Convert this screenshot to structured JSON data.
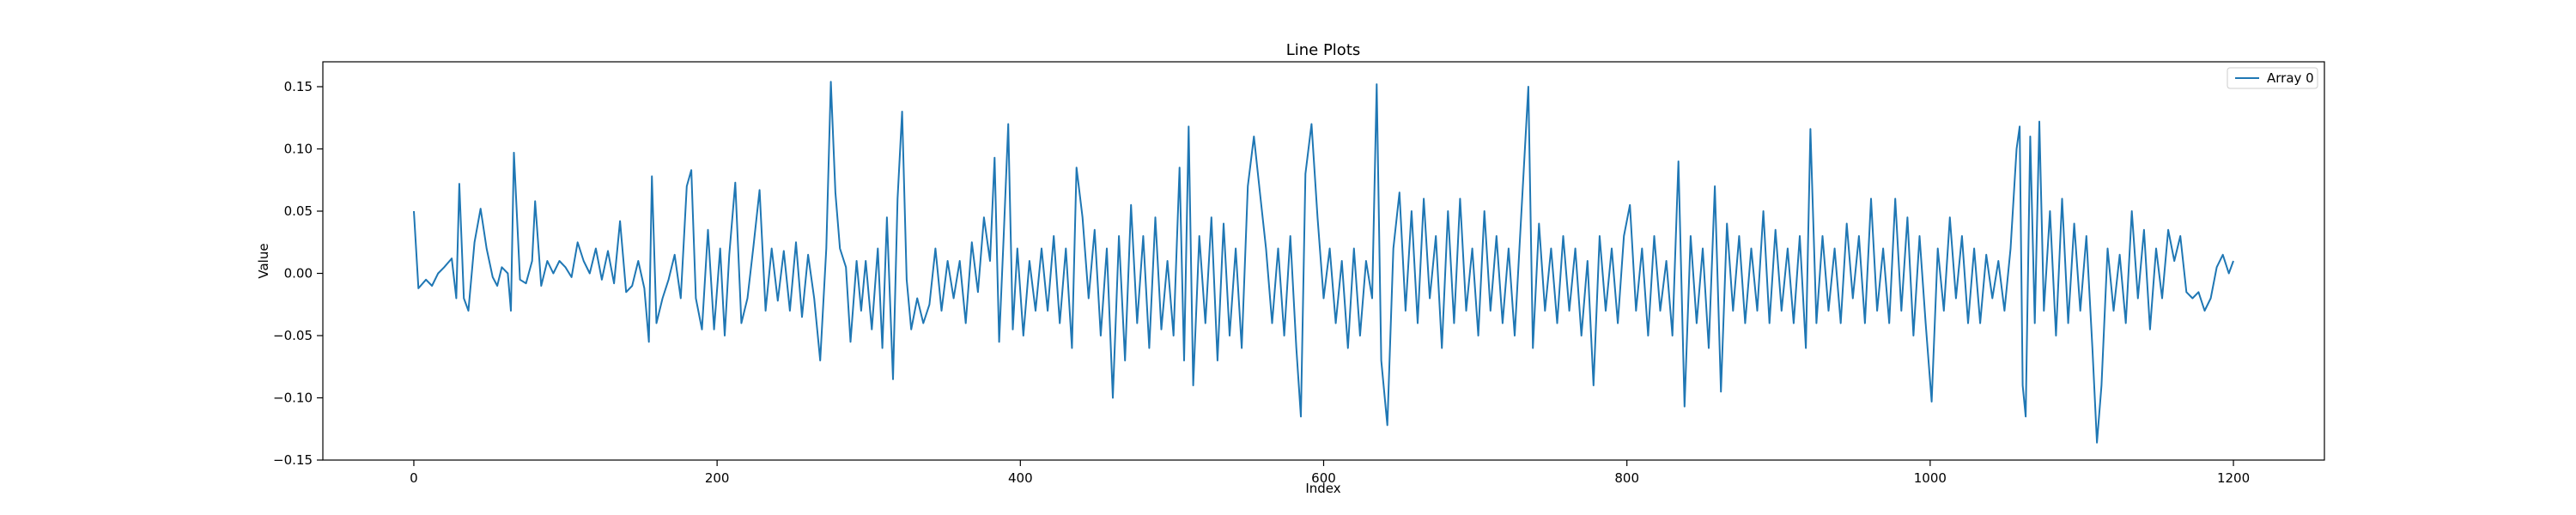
{
  "chart_data": {
    "type": "line",
    "title": "Line Plots",
    "xlabel": "Index",
    "ylabel": "Value",
    "xlim": [
      -60,
      1260
    ],
    "ylim": [
      -0.15,
      0.17
    ],
    "xticks": [
      0,
      200,
      400,
      600,
      800,
      1000,
      1200
    ],
    "xtick_labels": [
      "0",
      "200",
      "400",
      "600",
      "800",
      "1000",
      "1200"
    ],
    "yticks": [
      -0.15,
      -0.1,
      -0.05,
      0.0,
      0.05,
      0.1,
      0.15
    ],
    "ytick_labels": [
      "−0.15",
      "−0.10",
      "−0.05",
      "0.00",
      "0.05",
      "0.10",
      "0.15"
    ],
    "grid": false,
    "legend_position": "top-right",
    "series_color": "#1f77b4",
    "series": [
      {
        "name": "Array 0",
        "keypoints": [
          [
            0,
            0.05
          ],
          [
            3,
            -0.012
          ],
          [
            8,
            -0.005
          ],
          [
            12,
            -0.01
          ],
          [
            16,
            0.0
          ],
          [
            20,
            0.005
          ],
          [
            25,
            0.012
          ],
          [
            28,
            -0.02
          ],
          [
            30,
            0.072
          ],
          [
            33,
            -0.02
          ],
          [
            36,
            -0.03
          ],
          [
            40,
            0.025
          ],
          [
            44,
            0.052
          ],
          [
            48,
            0.02
          ],
          [
            52,
            -0.003
          ],
          [
            55,
            -0.01
          ],
          [
            58,
            0.005
          ],
          [
            62,
            0.0
          ],
          [
            64,
            -0.03
          ],
          [
            66,
            0.097
          ],
          [
            70,
            -0.005
          ],
          [
            74,
            -0.008
          ],
          [
            78,
            0.01
          ],
          [
            80,
            0.058
          ],
          [
            84,
            -0.01
          ],
          [
            88,
            0.01
          ],
          [
            92,
            0.0
          ],
          [
            96,
            0.01
          ],
          [
            100,
            0.005
          ],
          [
            104,
            -0.003
          ],
          [
            108,
            0.025
          ],
          [
            112,
            0.01
          ],
          [
            116,
            0.0
          ],
          [
            120,
            0.02
          ],
          [
            124,
            -0.005
          ],
          [
            128,
            0.018
          ],
          [
            132,
            -0.008
          ],
          [
            136,
            0.042
          ],
          [
            140,
            -0.015
          ],
          [
            144,
            -0.01
          ],
          [
            148,
            0.01
          ],
          [
            152,
            -0.012
          ],
          [
            155,
            -0.055
          ],
          [
            157,
            0.078
          ],
          [
            160,
            -0.04
          ],
          [
            164,
            -0.02
          ],
          [
            168,
            -0.005
          ],
          [
            172,
            0.015
          ],
          [
            176,
            -0.02
          ],
          [
            180,
            0.07
          ],
          [
            183,
            0.083
          ],
          [
            186,
            -0.02
          ],
          [
            190,
            -0.045
          ],
          [
            194,
            0.035
          ],
          [
            198,
            -0.045
          ],
          [
            202,
            0.02
          ],
          [
            205,
            -0.05
          ],
          [
            208,
            0.015
          ],
          [
            212,
            0.073
          ],
          [
            216,
            -0.04
          ],
          [
            220,
            -0.02
          ],
          [
            224,
            0.022
          ],
          [
            228,
            0.067
          ],
          [
            232,
            -0.03
          ],
          [
            236,
            0.02
          ],
          [
            240,
            -0.022
          ],
          [
            244,
            0.018
          ],
          [
            248,
            -0.03
          ],
          [
            252,
            0.025
          ],
          [
            256,
            -0.035
          ],
          [
            260,
            0.015
          ],
          [
            264,
            -0.02
          ],
          [
            268,
            -0.07
          ],
          [
            272,
            0.02
          ],
          [
            275,
            0.154
          ],
          [
            278,
            0.065
          ],
          [
            281,
            0.02
          ],
          [
            285,
            0.005
          ],
          [
            288,
            -0.055
          ],
          [
            292,
            0.01
          ],
          [
            295,
            -0.03
          ],
          [
            298,
            0.01
          ],
          [
            302,
            -0.045
          ],
          [
            306,
            0.02
          ],
          [
            309,
            -0.06
          ],
          [
            312,
            0.045
          ],
          [
            316,
            -0.085
          ],
          [
            319,
            0.06
          ],
          [
            322,
            0.13
          ],
          [
            325,
            -0.005
          ],
          [
            328,
            -0.045
          ],
          [
            332,
            -0.02
          ],
          [
            336,
            -0.04
          ],
          [
            340,
            -0.025
          ],
          [
            344,
            0.02
          ],
          [
            348,
            -0.03
          ],
          [
            352,
            0.01
          ],
          [
            356,
            -0.02
          ],
          [
            360,
            0.01
          ],
          [
            364,
            -0.04
          ],
          [
            368,
            0.025
          ],
          [
            372,
            -0.015
          ],
          [
            376,
            0.045
          ],
          [
            380,
            0.01
          ],
          [
            383,
            0.093
          ],
          [
            386,
            -0.055
          ],
          [
            389,
            0.03
          ],
          [
            392,
            0.12
          ],
          [
            395,
            -0.045
          ],
          [
            398,
            0.02
          ],
          [
            402,
            -0.05
          ],
          [
            406,
            0.01
          ],
          [
            410,
            -0.03
          ],
          [
            414,
            0.02
          ],
          [
            418,
            -0.03
          ],
          [
            422,
            0.03
          ],
          [
            426,
            -0.04
          ],
          [
            430,
            0.02
          ],
          [
            434,
            -0.06
          ],
          [
            437,
            0.085
          ],
          [
            441,
            0.045
          ],
          [
            445,
            -0.02
          ],
          [
            449,
            0.035
          ],
          [
            453,
            -0.05
          ],
          [
            457,
            0.02
          ],
          [
            461,
            -0.1
          ],
          [
            465,
            0.03
          ],
          [
            469,
            -0.07
          ],
          [
            473,
            0.055
          ],
          [
            477,
            -0.04
          ],
          [
            481,
            0.03
          ],
          [
            485,
            -0.06
          ],
          [
            489,
            0.045
          ],
          [
            493,
            -0.045
          ],
          [
            497,
            0.01
          ],
          [
            501,
            -0.05
          ],
          [
            505,
            0.085
          ],
          [
            508,
            -0.07
          ],
          [
            511,
            0.118
          ],
          [
            514,
            -0.09
          ],
          [
            518,
            0.03
          ],
          [
            522,
            -0.04
          ],
          [
            526,
            0.045
          ],
          [
            530,
            -0.07
          ],
          [
            534,
            0.04
          ],
          [
            538,
            -0.05
          ],
          [
            542,
            0.02
          ],
          [
            546,
            -0.06
          ],
          [
            550,
            0.07
          ],
          [
            554,
            0.11
          ],
          [
            558,
            0.065
          ],
          [
            562,
            0.02
          ],
          [
            566,
            -0.04
          ],
          [
            570,
            0.02
          ],
          [
            574,
            -0.05
          ],
          [
            578,
            0.03
          ],
          [
            582,
            -0.06
          ],
          [
            585,
            -0.115
          ],
          [
            588,
            0.08
          ],
          [
            592,
            0.12
          ],
          [
            596,
            0.045
          ],
          [
            600,
            -0.02
          ],
          [
            604,
            0.02
          ],
          [
            608,
            -0.04
          ],
          [
            612,
            0.01
          ],
          [
            616,
            -0.06
          ],
          [
            620,
            0.02
          ],
          [
            624,
            -0.05
          ],
          [
            628,
            0.01
          ],
          [
            632,
            -0.02
          ],
          [
            635,
            0.152
          ],
          [
            638,
            -0.07
          ],
          [
            642,
            -0.122
          ],
          [
            646,
            0.02
          ],
          [
            650,
            0.065
          ],
          [
            654,
            -0.03
          ],
          [
            658,
            0.05
          ],
          [
            662,
            -0.04
          ],
          [
            666,
            0.06
          ],
          [
            670,
            -0.02
          ],
          [
            674,
            0.03
          ],
          [
            678,
            -0.06
          ],
          [
            682,
            0.05
          ],
          [
            686,
            -0.04
          ],
          [
            690,
            0.06
          ],
          [
            694,
            -0.03
          ],
          [
            698,
            0.02
          ],
          [
            702,
            -0.05
          ],
          [
            706,
            0.05
          ],
          [
            710,
            -0.03
          ],
          [
            714,
            0.03
          ],
          [
            718,
            -0.04
          ],
          [
            722,
            0.02
          ],
          [
            726,
            -0.05
          ],
          [
            730,
            0.04
          ],
          [
            735,
            0.15
          ],
          [
            738,
            -0.06
          ],
          [
            742,
            0.04
          ],
          [
            746,
            -0.03
          ],
          [
            750,
            0.02
          ],
          [
            754,
            -0.04
          ],
          [
            758,
            0.03
          ],
          [
            762,
            -0.03
          ],
          [
            766,
            0.02
          ],
          [
            770,
            -0.05
          ],
          [
            774,
            0.01
          ],
          [
            778,
            -0.09
          ],
          [
            782,
            0.03
          ],
          [
            786,
            -0.03
          ],
          [
            790,
            0.02
          ],
          [
            794,
            -0.04
          ],
          [
            798,
            0.03
          ],
          [
            802,
            0.055
          ],
          [
            806,
            -0.03
          ],
          [
            810,
            0.02
          ],
          [
            814,
            -0.05
          ],
          [
            818,
            0.03
          ],
          [
            822,
            -0.03
          ],
          [
            826,
            0.01
          ],
          [
            830,
            -0.05
          ],
          [
            834,
            0.09
          ],
          [
            838,
            -0.107
          ],
          [
            842,
            0.03
          ],
          [
            846,
            -0.04
          ],
          [
            850,
            0.02
          ],
          [
            854,
            -0.06
          ],
          [
            858,
            0.07
          ],
          [
            862,
            -0.095
          ],
          [
            866,
            0.04
          ],
          [
            870,
            -0.03
          ],
          [
            874,
            0.03
          ],
          [
            878,
            -0.04
          ],
          [
            882,
            0.02
          ],
          [
            886,
            -0.03
          ],
          [
            890,
            0.05
          ],
          [
            894,
            -0.04
          ],
          [
            898,
            0.035
          ],
          [
            902,
            -0.03
          ],
          [
            906,
            0.02
          ],
          [
            910,
            -0.04
          ],
          [
            914,
            0.03
          ],
          [
            918,
            -0.06
          ],
          [
            921,
            0.116
          ],
          [
            925,
            -0.04
          ],
          [
            929,
            0.03
          ],
          [
            933,
            -0.03
          ],
          [
            937,
            0.02
          ],
          [
            941,
            -0.04
          ],
          [
            945,
            0.04
          ],
          [
            949,
            -0.02
          ],
          [
            953,
            0.03
          ],
          [
            957,
            -0.04
          ],
          [
            961,
            0.06
          ],
          [
            965,
            -0.03
          ],
          [
            969,
            0.02
          ],
          [
            973,
            -0.04
          ],
          [
            977,
            0.06
          ],
          [
            981,
            -0.03
          ],
          [
            985,
            0.045
          ],
          [
            989,
            -0.05
          ],
          [
            993,
            0.03
          ],
          [
            997,
            -0.04
          ],
          [
            1001,
            -0.103
          ],
          [
            1005,
            0.02
          ],
          [
            1009,
            -0.03
          ],
          [
            1013,
            0.045
          ],
          [
            1017,
            -0.02
          ],
          [
            1021,
            0.03
          ],
          [
            1025,
            -0.04
          ],
          [
            1029,
            0.02
          ],
          [
            1033,
            -0.04
          ],
          [
            1037,
            0.015
          ],
          [
            1041,
            -0.02
          ],
          [
            1045,
            0.01
          ],
          [
            1049,
            -0.03
          ],
          [
            1053,
            0.02
          ],
          [
            1057,
            0.1
          ],
          [
            1059,
            0.118
          ],
          [
            1061,
            -0.09
          ],
          [
            1063,
            -0.115
          ],
          [
            1066,
            0.11
          ],
          [
            1069,
            -0.04
          ],
          [
            1072,
            0.122
          ],
          [
            1075,
            -0.03
          ],
          [
            1079,
            0.05
          ],
          [
            1083,
            -0.05
          ],
          [
            1087,
            0.06
          ],
          [
            1091,
            -0.04
          ],
          [
            1095,
            0.04
          ],
          [
            1099,
            -0.03
          ],
          [
            1103,
            0.03
          ],
          [
            1107,
            -0.06
          ],
          [
            1110,
            -0.136
          ],
          [
            1113,
            -0.09
          ],
          [
            1117,
            0.02
          ],
          [
            1121,
            -0.03
          ],
          [
            1125,
            0.015
          ],
          [
            1129,
            -0.04
          ],
          [
            1133,
            0.05
          ],
          [
            1137,
            -0.02
          ],
          [
            1141,
            0.035
          ],
          [
            1145,
            -0.045
          ],
          [
            1149,
            0.02
          ],
          [
            1153,
            -0.02
          ],
          [
            1157,
            0.035
          ],
          [
            1161,
            0.01
          ],
          [
            1165,
            0.03
          ],
          [
            1169,
            -0.015
          ],
          [
            1173,
            -0.02
          ],
          [
            1177,
            -0.015
          ],
          [
            1181,
            -0.03
          ],
          [
            1185,
            -0.02
          ],
          [
            1189,
            0.005
          ],
          [
            1193,
            0.015
          ],
          [
            1197,
            0.0
          ],
          [
            1200,
            0.01
          ]
        ]
      }
    ]
  }
}
